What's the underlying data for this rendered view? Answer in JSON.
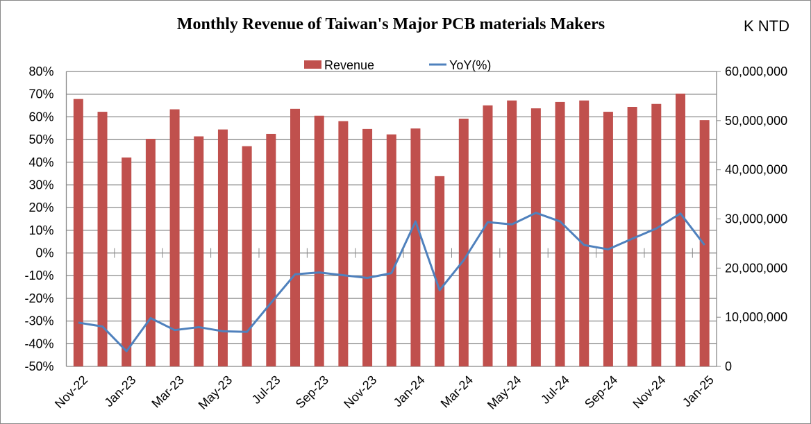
{
  "chart_data": {
    "type": "bar+line",
    "title": "Monthly Revenue of Taiwan's Major PCB materials Makers",
    "unit_label": "K NTD",
    "categories": [
      "Nov-22",
      "Dec-22",
      "Jan-23",
      "Feb-23",
      "Mar-23",
      "Apr-23",
      "May-23",
      "Jun-23",
      "Jul-23",
      "Aug-23",
      "Sep-23",
      "Oct-23",
      "Nov-23",
      "Dec-23",
      "Jan-24",
      "Feb-24",
      "Mar-24",
      "Apr-24",
      "May-24",
      "Jun-24",
      "Jul-24",
      "Aug-24",
      "Sep-24",
      "Oct-24",
      "Nov-24",
      "Dec-24",
      "Jan-25"
    ],
    "x_tick_labels": [
      "Nov-22",
      "Jan-23",
      "Mar-23",
      "May-23",
      "Jul-23",
      "Sep-23",
      "Nov-23",
      "Jan-24",
      "Mar-24",
      "May-24",
      "Jul-24",
      "Sep-24",
      "Nov-24",
      "Jan-25"
    ],
    "series": [
      {
        "name": "Revenue",
        "type": "bar",
        "axis": "right",
        "color": "#C0504D",
        "values": [
          54400000,
          51800000,
          42500000,
          46300000,
          52300000,
          46800000,
          48200000,
          44800000,
          47300000,
          52400000,
          51000000,
          49900000,
          48300000,
          47200000,
          48400000,
          38700000,
          50400000,
          53100000,
          54100000,
          52500000,
          53800000,
          54100000,
          51800000,
          52800000,
          53400000,
          55500000,
          50100000
        ]
      },
      {
        "name": "YoY(%)",
        "type": "line",
        "axis": "left",
        "color": "#4F81BD",
        "values": [
          -30.7,
          -32.4,
          -43.3,
          -28.7,
          -34.0,
          -32.7,
          -34.5,
          -34.8,
          -22.0,
          -9.4,
          -8.6,
          -9.8,
          -11.0,
          -8.9,
          13.9,
          -16.4,
          -3.2,
          13.6,
          12.6,
          17.7,
          13.9,
          3.5,
          1.6,
          6.3,
          10.8,
          17.4,
          3.5
        ]
      }
    ],
    "y_left": {
      "lim": [
        -50,
        80
      ],
      "step": 10,
      "tick_labels": [
        "-50%",
        "-40%",
        "-30%",
        "-20%",
        "-10%",
        "0%",
        "10%",
        "20%",
        "30%",
        "40%",
        "50%",
        "60%",
        "70%",
        "80%"
      ]
    },
    "y_right": {
      "lim": [
        0,
        60000000
      ],
      "step": 10000000,
      "tick_labels": [
        "0",
        "10,000,000",
        "20,000,000",
        "30,000,000",
        "40,000,000",
        "50,000,000",
        "60,000,000"
      ]
    },
    "grid": true,
    "legend_placement": "top"
  }
}
